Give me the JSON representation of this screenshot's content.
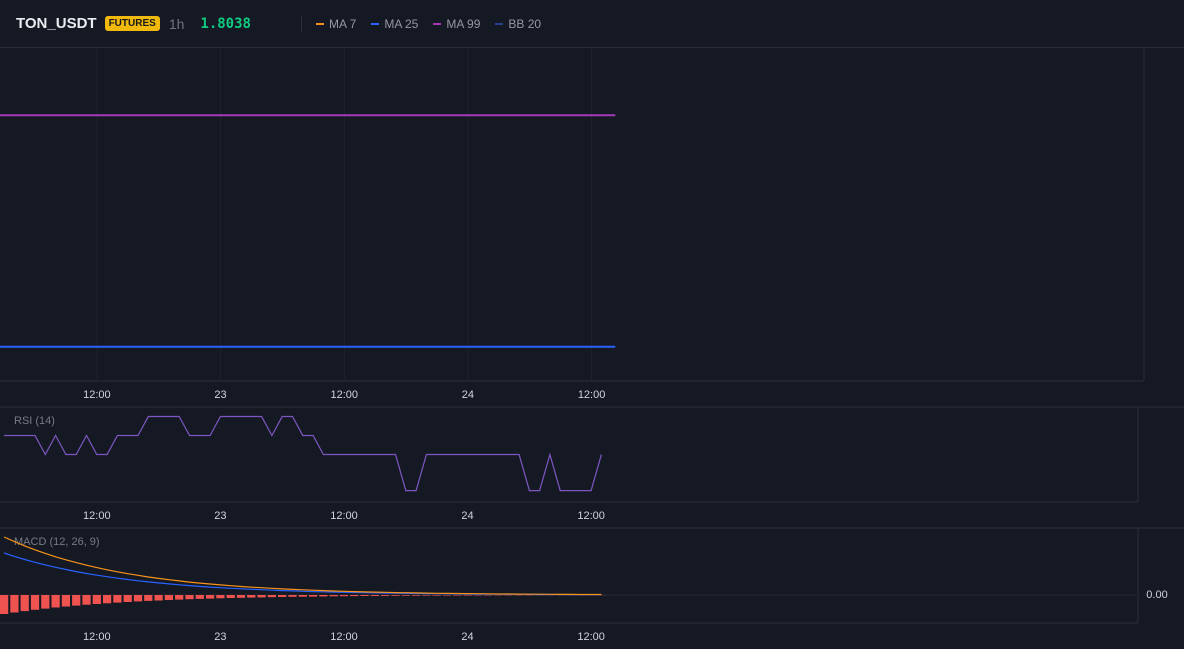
{
  "header": {
    "symbol": "TON_USDT",
    "badge": "FUTURES",
    "interval": "1h",
    "price": "1.8038"
  },
  "chart_data": [
    {
      "type": "line",
      "grid": true,
      "x": [
        -0.4,
        59.3
      ],
      "xlim": [
        -0.4,
        110.6
      ],
      "ylim": [
        1.7841,
        1.8416
      ],
      "xticks": [
        {
          "value": 9,
          "label": "12:00"
        },
        {
          "value": 21,
          "label": "23"
        },
        {
          "value": 33,
          "label": "12:00"
        },
        {
          "value": 45,
          "label": "24"
        },
        {
          "value": 57,
          "label": "12:00"
        }
      ],
      "series": [
        {
          "name": "MA 7",
          "color": "#f7931a",
          "values": [
            null,
            null
          ]
        },
        {
          "name": "MA 25",
          "color": "#2962ff",
          "values": [
            1.79,
            1.79
          ]
        },
        {
          "name": "MA 99",
          "color": "#a33bb8",
          "values": [
            1.83,
            1.83
          ]
        },
        {
          "name": "BB 20",
          "color": "#2a3f8f",
          "values": [
            null,
            null
          ]
        }
      ]
    },
    {
      "type": "line",
      "grid": false,
      "title": "RSI (14)",
      "x": [
        0,
        1,
        2,
        3,
        4,
        5,
        6,
        7,
        8,
        9,
        10,
        11,
        12,
        13,
        14,
        15,
        16,
        17,
        18,
        19,
        20,
        21,
        22,
        23,
        24,
        25,
        26,
        27,
        28,
        29,
        30,
        31,
        32,
        33,
        34,
        35,
        36,
        37,
        38,
        39,
        40,
        41,
        42,
        43,
        44,
        45,
        46,
        47,
        48,
        49,
        50,
        51,
        52,
        53,
        54,
        55,
        56,
        57,
        58
      ],
      "xlim": [
        -0.4,
        110.1
      ],
      "ylim": [
        0,
        100
      ],
      "xticks": [
        {
          "value": 9,
          "label": "12:00"
        },
        {
          "value": 21,
          "label": "23"
        },
        {
          "value": 33,
          "label": "12:00"
        },
        {
          "value": 45,
          "label": "24"
        },
        {
          "value": 57,
          "label": "12:00"
        }
      ],
      "series": [
        {
          "color": "#7e57c2",
          "values": [
            70,
            70,
            70,
            70,
            50,
            70,
            50,
            50,
            70,
            50,
            50,
            70,
            70,
            70,
            90,
            90,
            90,
            90,
            70,
            70,
            70,
            90,
            90,
            90,
            90,
            90,
            70,
            90,
            90,
            70,
            70,
            50,
            50,
            50,
            50,
            50,
            50,
            50,
            50,
            12,
            12,
            50,
            50,
            50,
            50,
            50,
            50,
            50,
            50,
            50,
            50,
            12,
            12,
            50,
            12,
            12,
            12,
            12,
            50
          ]
        }
      ]
    },
    {
      "type": "combo",
      "grid": false,
      "title": "MACD (12, 26, 9)",
      "x": [
        0,
        1,
        2,
        3,
        4,
        5,
        6,
        7,
        8,
        9,
        10,
        11,
        12,
        13,
        14,
        15,
        16,
        17,
        18,
        19,
        20,
        21,
        22,
        23,
        24,
        25,
        26,
        27,
        28,
        29,
        30,
        31,
        32,
        33,
        34,
        35,
        36,
        37,
        38,
        39,
        40,
        41,
        42,
        43,
        44,
        45,
        46,
        47,
        48,
        49,
        50,
        51,
        52,
        53,
        54,
        55,
        56,
        57,
        58
      ],
      "xlim": [
        -0.4,
        110.1
      ],
      "ylim": [
        -0.028,
        0.067
      ],
      "xticks": [
        {
          "value": 9,
          "label": "12:00"
        },
        {
          "value": 21,
          "label": "23"
        },
        {
          "value": 33,
          "label": "12:00"
        },
        {
          "value": 45,
          "label": "24"
        },
        {
          "value": 57,
          "label": "12:00"
        }
      ],
      "yticks": [
        {
          "value": 0,
          "label": "0.00"
        }
      ],
      "series": [
        {
          "type": "bar",
          "color": "#ef5350",
          "values": [
            -0.019,
            -0.0175,
            -0.0161,
            -0.0148,
            -0.0136,
            -0.0125,
            -0.0115,
            -0.0106,
            -0.0097,
            -0.009,
            -0.0083,
            -0.0076,
            -0.007,
            -0.0064,
            -0.0059,
            -0.0055,
            -0.005,
            -0.0046,
            -0.0042,
            -0.0039,
            -0.0036,
            -0.0033,
            -0.003,
            -0.0028,
            -0.0026,
            -0.0024,
            -0.0022,
            -0.002,
            -0.0018,
            -0.0017,
            -0.0016,
            -0.0014,
            -0.0013,
            -0.0012,
            -0.0011,
            -0.001,
            -0.001,
            -0.0009,
            -0.0008,
            -0.0007,
            -0.0007,
            -0.0006,
            -0.0006,
            -0.0005,
            -0.0005,
            -0.0005,
            -0.0004,
            -0.0004,
            -0.0003,
            -0.0003,
            -0.0003,
            -0.0003,
            -0.0002,
            -0.0002,
            -0.0002,
            -0.0002,
            -0.0002,
            -0.0002,
            -0.0002
          ]
        },
        {
          "type": "line",
          "color": "#2962ff",
          "values": [
            0.042,
            0.0386,
            0.0355,
            0.0327,
            0.0301,
            0.0277,
            0.0255,
            0.0234,
            0.0215,
            0.0198,
            0.0183,
            0.0168,
            0.0155,
            0.0142,
            0.0131,
            0.0121,
            0.0111,
            0.0102,
            0.0094,
            0.0086,
            0.0079,
            0.0073,
            0.0067,
            0.0062,
            0.0057,
            0.0053,
            0.0048,
            0.0044,
            0.0041,
            0.0037,
            0.0034,
            0.0032,
            0.0029,
            0.0027,
            0.0025,
            0.0023,
            0.0021,
            0.0019,
            0.0018,
            0.0016,
            0.0015,
            0.0014,
            0.0013,
            0.0012,
            0.0011,
            0.001,
            0.0009,
            0.0008,
            0.0008,
            0.0007,
            0.0007,
            0.0006,
            0.0005,
            0.0005,
            0.0005,
            0.0004,
            0.0004,
            0.0003,
            0.0003
          ]
        },
        {
          "type": "line",
          "color": "#f7931a",
          "values": [
            0.058,
            0.0534,
            0.0491,
            0.0452,
            0.0416,
            0.0382,
            0.0352,
            0.0324,
            0.0298,
            0.0274,
            0.0252,
            0.0232,
            0.0213,
            0.0197,
            0.018,
            0.0166,
            0.0153,
            0.0141,
            0.0129,
            0.0119,
            0.011,
            0.0101,
            0.0093,
            0.0085,
            0.0078,
            0.0073,
            0.0067,
            0.0061,
            0.0056,
            0.0052,
            0.0048,
            0.0044,
            0.004,
            0.0037,
            0.0034,
            0.0031,
            0.0029,
            0.0027,
            0.0024,
            0.0023,
            0.0021,
            0.0019,
            0.0017,
            0.0016,
            0.0015,
            0.0014,
            0.0013,
            0.0012,
            0.001,
            0.001,
            0.0009,
            0.0008,
            0.0008,
            0.0007,
            0.0006,
            0.0006,
            0.0005,
            0.0005,
            0.0005
          ]
        }
      ]
    }
  ]
}
